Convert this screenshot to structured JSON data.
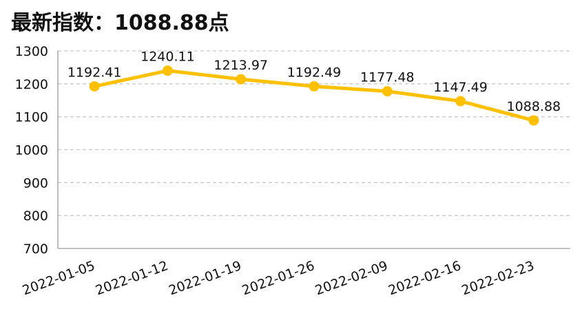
{
  "title": "最新指数：1088.88点",
  "chart_data": {
    "type": "line",
    "title": "最新指数：1088.88点",
    "xlabel": "",
    "ylabel": "",
    "categories": [
      "2022-01-05",
      "2022-01-12",
      "2022-01-19",
      "2022-01-26",
      "2022-02-09",
      "2022-02-16",
      "2022-02-23"
    ],
    "series": [
      {
        "values": [
          1192.41,
          1240.11,
          1213.97,
          1192.49,
          1177.48,
          1147.49,
          1088.88
        ],
        "labels": [
          "1192.41",
          "1240.11",
          "1213.97",
          "1192.49",
          "1177.48",
          "1147.49",
          "1088.88"
        ],
        "color": "#FFC000"
      }
    ],
    "ylim": [
      700,
      1300
    ],
    "yticks": [
      "700",
      "800",
      "900",
      "1000",
      "1100",
      "1200",
      "1300"
    ],
    "grid": "horizontal-dashed",
    "legend": "none"
  }
}
